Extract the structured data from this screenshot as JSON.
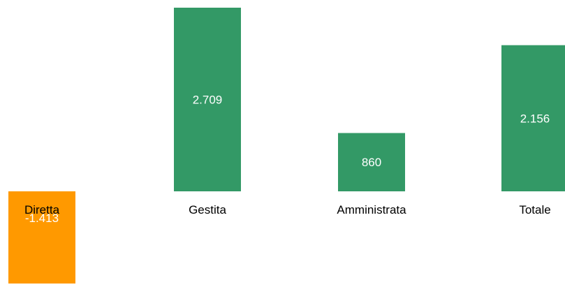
{
  "chart_data": {
    "type": "bar",
    "categories": [
      "Diretta",
      "Gestita",
      "Amministrata",
      "Totale"
    ],
    "values": [
      -1413,
      2709,
      860,
      2156
    ],
    "value_labels": [
      "-1.413",
      "2.709",
      "860",
      "2.156"
    ],
    "colors": [
      "#FF9900",
      "#339966",
      "#339966",
      "#339966"
    ],
    "value_label_color": "#ffffff",
    "category_label_color": "#000000",
    "title": "",
    "xlabel": "",
    "ylabel": "",
    "grid": false,
    "legend": "none"
  }
}
